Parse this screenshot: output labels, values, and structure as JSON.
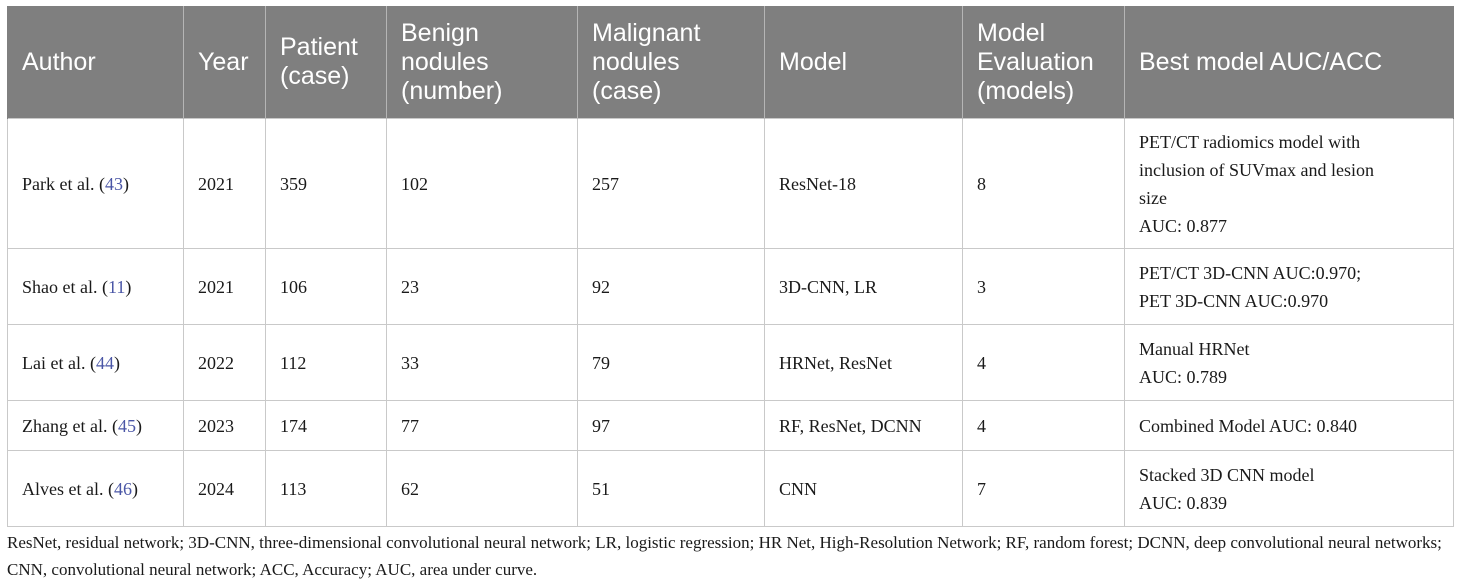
{
  "table": {
    "headers": [
      {
        "lines": [
          "Author"
        ]
      },
      {
        "lines": [
          "Year"
        ]
      },
      {
        "lines": [
          "Patient",
          "(case)"
        ]
      },
      {
        "lines": [
          "Benign",
          "nodules",
          "(number)"
        ]
      },
      {
        "lines": [
          "Malignant",
          "nodules",
          "(case)"
        ]
      },
      {
        "lines": [
          "Model"
        ]
      },
      {
        "lines": [
          "Model",
          "Evaluation",
          "(models)"
        ]
      },
      {
        "lines": [
          "Best model AUC/ACC"
        ]
      }
    ],
    "rows": [
      {
        "author": "Park et al. (",
        "ref": "43",
        "author_close": ")",
        "year": "2021",
        "patient": "359",
        "benign": "102",
        "malignant": "257",
        "model": "ResNet-18",
        "evaluation": "8",
        "best": [
          "PET/CT radiomics model with",
          "inclusion of SUVmax and lesion",
          "size",
          "AUC: 0.877"
        ]
      },
      {
        "author": "Shao et al. (",
        "ref": "11",
        "author_close": ")",
        "year": "2021",
        "patient": "106",
        "benign": "23",
        "malignant": "92",
        "model": "3D-CNN, LR",
        "evaluation": "3",
        "best": [
          "PET/CT 3D-CNN AUC:0.970;",
          "PET 3D-CNN AUC:0.970"
        ]
      },
      {
        "author": "Lai et al. (",
        "ref": "44",
        "author_close": ")",
        "year": "2022",
        "patient": "112",
        "benign": "33",
        "malignant": "79",
        "model": "HRNet, ResNet",
        "evaluation": "4",
        "best": [
          "Manual HRNet",
          "AUC: 0.789"
        ]
      },
      {
        "author": "Zhang et al. (",
        "ref": "45",
        "author_close": ")",
        "year": "2023",
        "patient": "174",
        "benign": "77",
        "malignant": "97",
        "model": "RF, ResNet, DCNN",
        "evaluation": "4",
        "best": [
          "Combined Model AUC: 0.840"
        ]
      },
      {
        "author": "Alves et al. (",
        "ref": "46",
        "author_close": ")",
        "year": "2024",
        "patient": "113",
        "benign": "62",
        "malignant": "51",
        "model": "CNN",
        "evaluation": "7",
        "best": [
          "Stacked 3D CNN model",
          "AUC: 0.839"
        ]
      }
    ]
  },
  "colors": {
    "header_bg": "#7f7f7f",
    "header_text": "#ffffff",
    "reference_link": "#4a56a6",
    "border": "#c9c9c9"
  },
  "footnote": "ResNet, residual network; 3D-CNN, three-dimensional convolutional neural network; LR, logistic regression; HR Net, High-Resolution Network; RF, random forest; DCNN, deep convolutional neural networks; CNN, convolutional neural network; ACC, Accuracy; AUC, area under curve."
}
